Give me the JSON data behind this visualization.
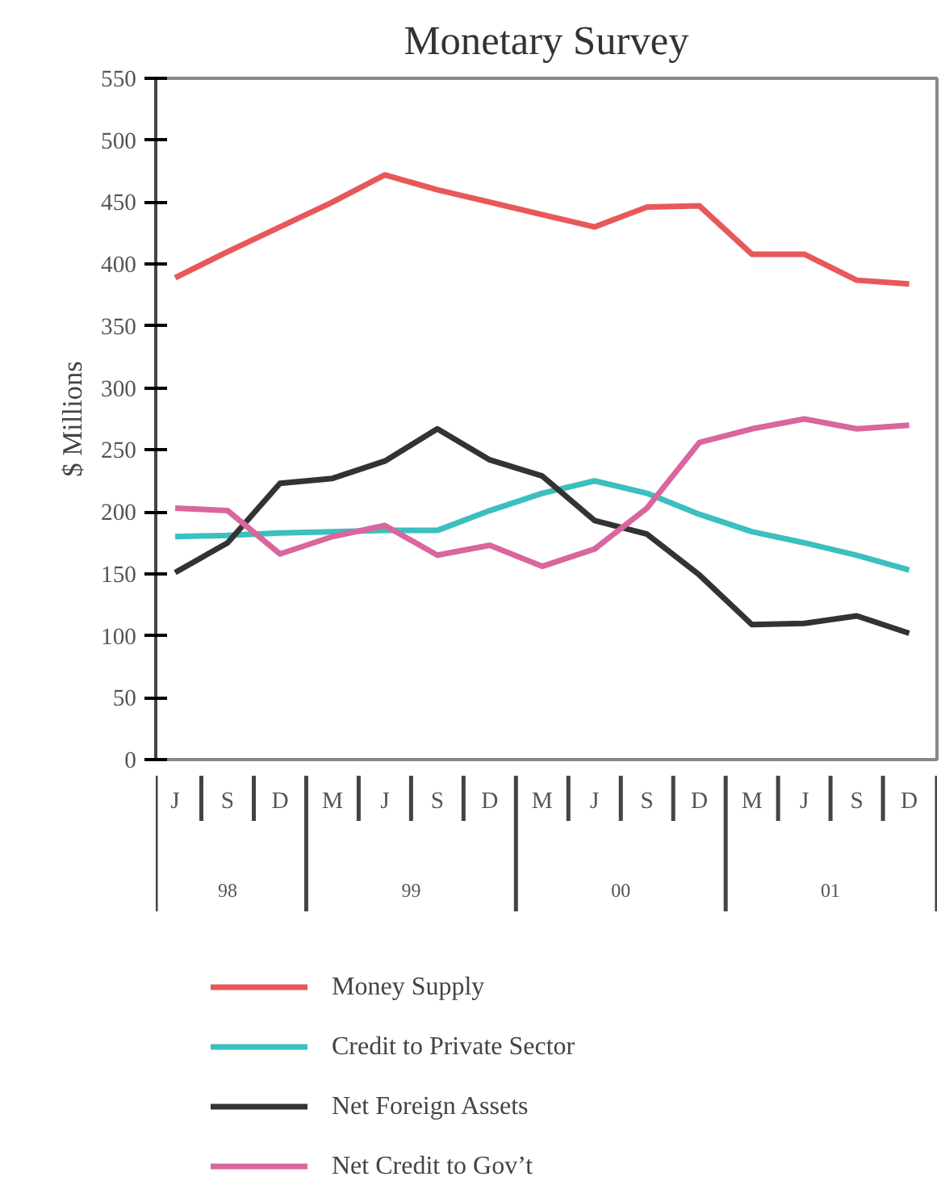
{
  "chart_data": {
    "type": "line",
    "title": "Monetary Survey",
    "ylabel": "$ Millions",
    "categories": [
      "J",
      "S",
      "D",
      "M",
      "J",
      "S",
      "D",
      "M",
      "J",
      "S",
      "D",
      "M",
      "J",
      "S",
      "D"
    ],
    "ylim": [
      0,
      550
    ],
    "yticks": [
      0,
      50,
      100,
      150,
      200,
      250,
      300,
      350,
      400,
      450,
      500,
      550
    ],
    "series": [
      {
        "name": "Money Supply",
        "color": "#e8585a",
        "values": [
          389,
          410,
          430,
          450,
          472,
          460,
          450,
          440,
          430,
          446,
          447,
          408,
          408,
          387,
          384
        ]
      },
      {
        "name": "Credit to Private Sector",
        "color": "#3bbfbf",
        "values": [
          180,
          181,
          183,
          184,
          185,
          185,
          201,
          215,
          225,
          215,
          198,
          184,
          175,
          165,
          153
        ]
      },
      {
        "name": "Net Foreign Assets",
        "color": "#333333",
        "values": [
          151,
          175,
          223,
          227,
          241,
          267,
          242,
          229,
          193,
          182,
          149,
          109,
          110,
          116,
          102
        ]
      },
      {
        "name": "Net Credit to Gov’t",
        "color": "#d9669e",
        "values": [
          203,
          201,
          166,
          180,
          189,
          165,
          173,
          156,
          170,
          203,
          256,
          267,
          275,
          267,
          270
        ]
      }
    ],
    "annotations": [
      "98",
      "99",
      "00",
      "01"
    ],
    "grid": false,
    "legend": "bottom",
    "marker": "none",
    "line_style": "solid"
  }
}
